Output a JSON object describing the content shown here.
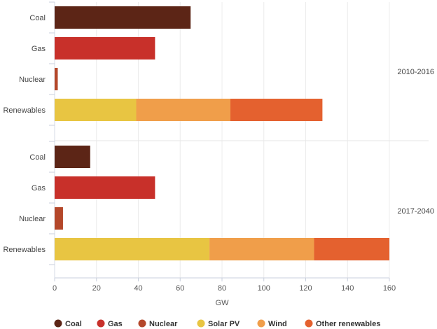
{
  "chart_data": {
    "type": "bar",
    "orientation": "horizontal",
    "stacked": true,
    "xlabel": "GW",
    "xlim": [
      0,
      160
    ],
    "xticks": [
      0,
      20,
      40,
      60,
      80,
      100,
      120,
      140,
      160
    ],
    "grid": true,
    "legend_position": "bottom",
    "series": [
      {
        "name": "Coal",
        "color": "#5c2516"
      },
      {
        "name": "Gas",
        "color": "#c8302a"
      },
      {
        "name": "Nuclear",
        "color": "#b4472a"
      },
      {
        "name": "Solar PV",
        "color": "#e8c542"
      },
      {
        "name": "Wind",
        "color": "#f09e4a"
      },
      {
        "name": "Other renewables",
        "color": "#e4612f"
      }
    ],
    "groups": [
      {
        "period": "2010-2016",
        "categories": [
          {
            "label": "Coal",
            "segments": [
              {
                "series": "Coal",
                "value": 65
              }
            ]
          },
          {
            "label": "Gas",
            "segments": [
              {
                "series": "Gas",
                "value": 48
              }
            ]
          },
          {
            "label": "Nuclear",
            "segments": [
              {
                "series": "Nuclear",
                "value": 1.5
              }
            ]
          },
          {
            "label": "Renewables",
            "segments": [
              {
                "series": "Solar PV",
                "value": 39
              },
              {
                "series": "Wind",
                "value": 45
              },
              {
                "series": "Other renewables",
                "value": 44
              }
            ]
          }
        ]
      },
      {
        "period": "2017-2040",
        "categories": [
          {
            "label": "Coal",
            "segments": [
              {
                "series": "Coal",
                "value": 17
              }
            ]
          },
          {
            "label": "Gas",
            "segments": [
              {
                "series": "Gas",
                "value": 48
              }
            ]
          },
          {
            "label": "Nuclear",
            "segments": [
              {
                "series": "Nuclear",
                "value": 4
              }
            ]
          },
          {
            "label": "Renewables",
            "segments": [
              {
                "series": "Solar PV",
                "value": 74
              },
              {
                "series": "Wind",
                "value": 50
              },
              {
                "series": "Other renewables",
                "value": 36
              }
            ]
          }
        ]
      }
    ]
  }
}
